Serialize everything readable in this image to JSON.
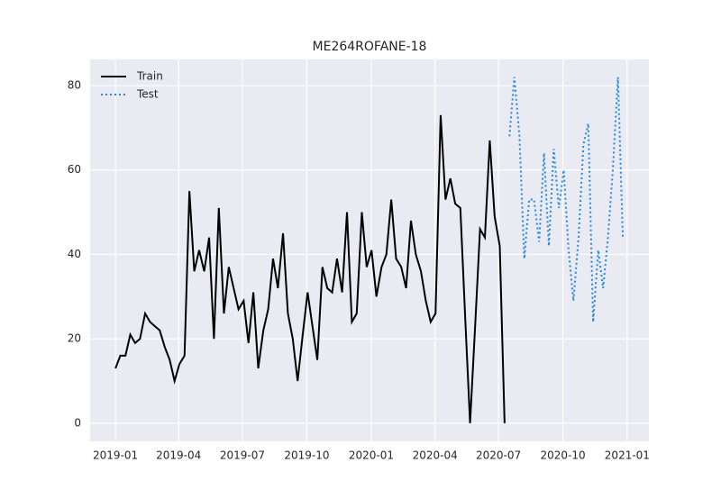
{
  "chart_data": {
    "type": "line",
    "title": "ME264ROFANE-18",
    "xlim": [
      2018.901,
      2021.085
    ],
    "ylim": [
      -4.3,
      86.2
    ],
    "xticks": [
      {
        "value": 2019.0,
        "label": "2019-01"
      },
      {
        "value": 2019.247,
        "label": "2019-04"
      },
      {
        "value": 2019.496,
        "label": "2019-07"
      },
      {
        "value": 2019.748,
        "label": "2019-10"
      },
      {
        "value": 2020.0,
        "label": "2020-01"
      },
      {
        "value": 2020.249,
        "label": "2020-04"
      },
      {
        "value": 2020.497,
        "label": "2020-07"
      },
      {
        "value": 2020.749,
        "label": "2020-10"
      },
      {
        "value": 2021.0,
        "label": "2021-01"
      }
    ],
    "yticks": [
      0,
      20,
      40,
      60,
      80
    ],
    "grid": true,
    "legend": "upper-left",
    "series": [
      {
        "name": "Train",
        "color": "#000000",
        "dash": "solid",
        "x": [
          2019.0,
          2019.019,
          2019.039,
          2019.058,
          2019.077,
          2019.096,
          2019.116,
          2019.135,
          2019.154,
          2019.173,
          2019.193,
          2019.212,
          2019.231,
          2019.25,
          2019.27,
          2019.289,
          2019.308,
          2019.327,
          2019.347,
          2019.366,
          2019.385,
          2019.404,
          2019.424,
          2019.443,
          2019.462,
          2019.481,
          2019.501,
          2019.52,
          2019.539,
          2019.558,
          2019.578,
          2019.597,
          2019.616,
          2019.635,
          2019.655,
          2019.674,
          2019.693,
          2019.712,
          2019.732,
          2019.751,
          2019.77,
          2019.789,
          2019.809,
          2019.828,
          2019.847,
          2019.866,
          2019.886,
          2019.905,
          2019.924,
          2019.943,
          2019.963,
          2019.982,
          2020.001,
          2020.02,
          2020.04,
          2020.059,
          2020.078,
          2020.097,
          2020.117,
          2020.136,
          2020.155,
          2020.174,
          2020.194,
          2020.213,
          2020.232,
          2020.251,
          2020.271,
          2020.29,
          2020.309,
          2020.328,
          2020.348,
          2020.367,
          2020.386,
          2020.405,
          2020.425,
          2020.444,
          2020.463,
          2020.482,
          2020.502,
          2020.521
        ],
        "values": [
          13,
          16,
          16,
          21,
          19,
          20,
          26,
          24,
          23,
          22,
          18,
          15,
          10,
          14,
          16,
          55,
          36,
          41,
          36,
          44,
          20,
          51,
          26,
          37,
          32,
          27,
          29,
          19,
          31,
          13,
          22,
          27,
          39,
          32,
          45,
          26,
          20,
          10,
          21,
          31,
          23,
          15,
          37,
          32,
          31,
          39,
          31,
          50,
          24,
          26,
          50,
          37,
          41,
          30,
          37,
          40,
          53,
          39,
          37,
          32,
          48,
          40,
          36,
          29,
          24,
          26,
          73,
          53,
          58,
          52,
          51,
          25,
          0,
          22,
          46,
          44,
          67,
          49,
          42,
          0
        ]
      },
      {
        "name": "Test",
        "color": "#1e88e5",
        "dash": "dotted",
        "x": [
          2020.54,
          2020.559,
          2020.579,
          2020.598,
          2020.617,
          2020.636,
          2020.656,
          2020.675,
          2020.694,
          2020.713,
          2020.733,
          2020.752,
          2020.771,
          2020.79,
          2020.81,
          2020.829,
          2020.848,
          2020.867,
          2020.887,
          2020.906,
          2020.925,
          2020.944,
          2020.964,
          2020.983
        ],
        "values": [
          68,
          82,
          68,
          39,
          53,
          53,
          43,
          64,
          42,
          65,
          51,
          60,
          41,
          29,
          44,
          66,
          71,
          24,
          41,
          32,
          44,
          60,
          82,
          44
        ]
      }
    ]
  }
}
